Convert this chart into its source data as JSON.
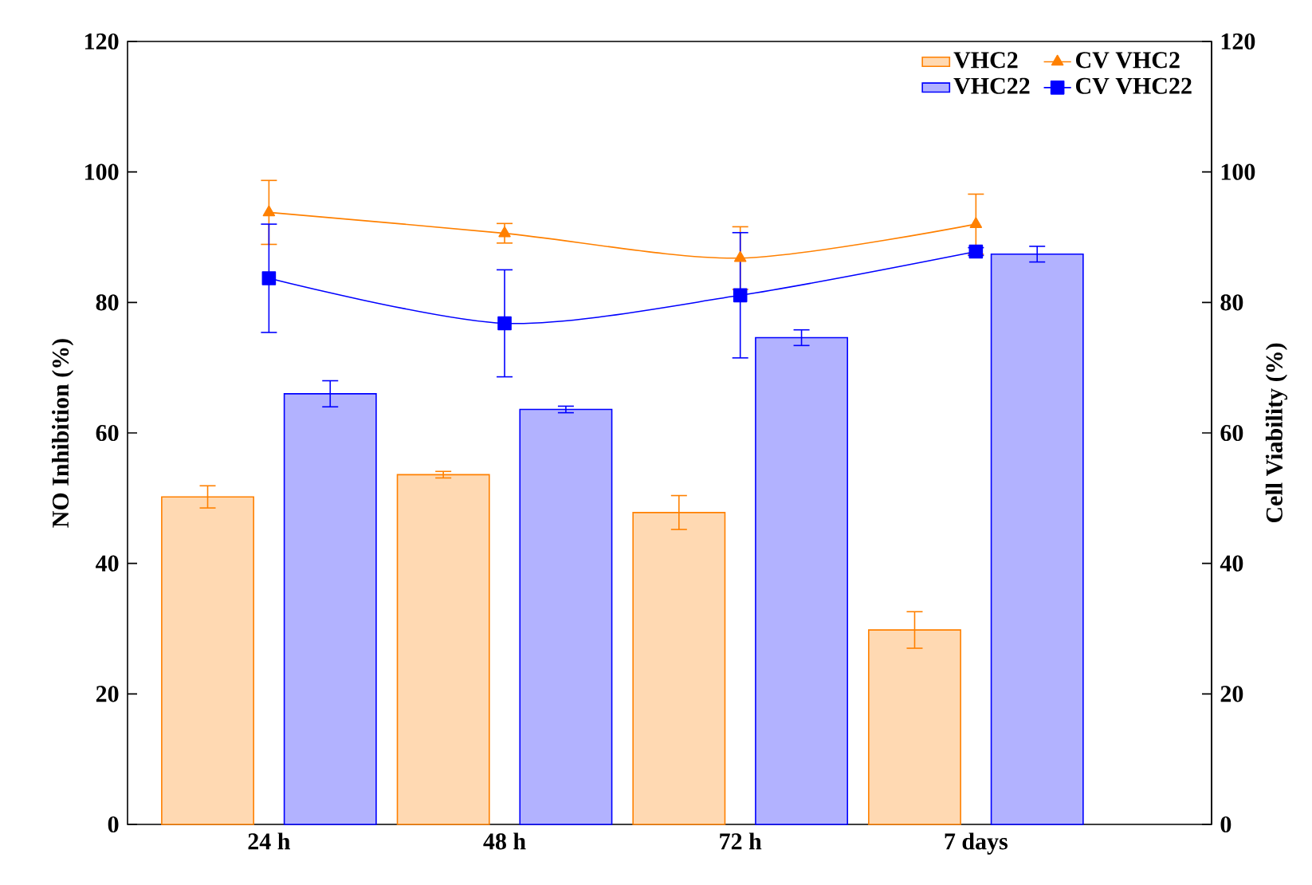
{
  "chart_data": {
    "type": "bar",
    "ylabel": "NO Inhibition (%)",
    "y2label": "Cell Viability (%)",
    "categories": [
      "24 h",
      "48 h",
      "72 h",
      "7 days"
    ],
    "ylim": [
      0,
      120
    ],
    "yticks": [
      0,
      20,
      40,
      60,
      80,
      100,
      120
    ],
    "y2lim": [
      0,
      120
    ],
    "y2ticks": [
      0,
      20,
      40,
      60,
      80,
      100,
      120
    ],
    "legend": "top right",
    "series": [
      {
        "name": "VHC2",
        "color": "#ff8000",
        "values": [
          50.2,
          53.6,
          47.8,
          29.8
        ],
        "errors": [
          1.7,
          0.5,
          2.6,
          2.8
        ]
      },
      {
        "name": "CV VHC2",
        "type": "line",
        "axis": "y2",
        "marker": "triangle",
        "color": "#ff8000",
        "values": [
          93.8,
          90.6,
          86.8,
          92.0
        ],
        "errors": [
          4.9,
          1.5,
          4.8,
          4.6
        ]
      },
      {
        "name": "VHC22",
        "color": "#0000ff",
        "values": [
          66.0,
          63.6,
          74.6,
          87.4
        ],
        "errors": [
          2.0,
          0.5,
          1.2,
          1.2
        ]
      },
      {
        "name": "CV VHC22",
        "type": "line",
        "axis": "y2",
        "marker": "square",
        "color": "#0000ff",
        "values": [
          83.7,
          76.8,
          81.1,
          87.8
        ],
        "errors": [
          8.3,
          8.2,
          9.6,
          0.6
        ]
      }
    ]
  }
}
